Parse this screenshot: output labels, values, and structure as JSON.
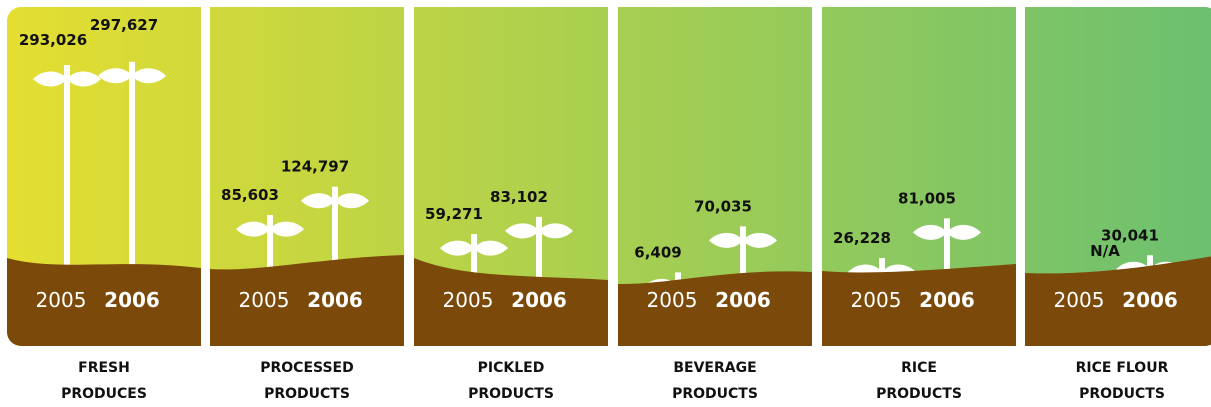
{
  "colors": {
    "gradient_left": "#E5DE30",
    "gradient_right": "#6CC070",
    "soil": "#7B4A0A",
    "plant": "#FFFFFF",
    "value_text": "#111111",
    "category_text": "#111111",
    "year_text": "#FFFFFF"
  },
  "chart_data": {
    "type": "bar",
    "style": "pictograph (plant stems with leaves rising from soil)",
    "title": "",
    "years": [
      "2005",
      "2006"
    ],
    "ylim": [
      0,
      300000
    ],
    "categories": [
      {
        "name_line1": "FRESH",
        "name_line2": "PRODUCES",
        "values": [
          293026,
          297627
        ],
        "labels": [
          "293,026",
          "297,627"
        ]
      },
      {
        "name_line1": "PROCESSED",
        "name_line2": "PRODUCTS",
        "values": [
          85603,
          124797
        ],
        "labels": [
          "85,603",
          "124,797"
        ]
      },
      {
        "name_line1": "PICKLED",
        "name_line2": "PRODUCTS",
        "values": [
          59271,
          83102
        ],
        "labels": [
          "59,271",
          "83,102"
        ]
      },
      {
        "name_line1": "BEVERAGE",
        "name_line2": "PRODUCTS",
        "values": [
          6409,
          70035
        ],
        "labels": [
          "6,409",
          "70,035"
        ]
      },
      {
        "name_line1": "RICE",
        "name_line2": "PRODUCTS",
        "values": [
          26228,
          81005
        ],
        "labels": [
          "26,228",
          "81,005"
        ]
      },
      {
        "name_line1": "RICE FLOUR",
        "name_line2": "PRODUCTS",
        "values": [
          null,
          30041
        ],
        "labels": [
          "N/A",
          "30,041"
        ]
      }
    ]
  }
}
